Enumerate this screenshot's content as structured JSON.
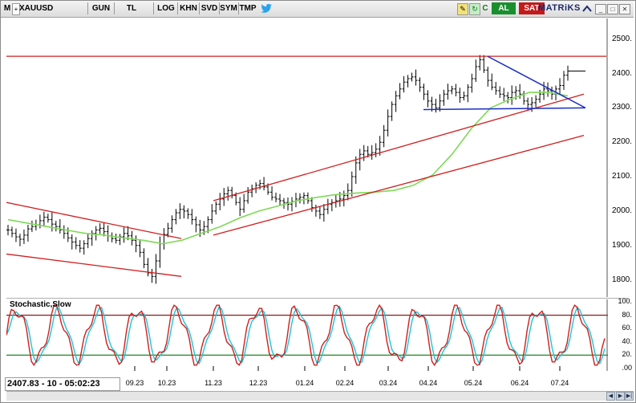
{
  "toolbar": {
    "menu_label": "M",
    "symbol": "XAUUSD",
    "buttons": [
      "GUN",
      "TL",
      "LOG",
      "KHN",
      "SVD",
      "SYM",
      "TMP"
    ],
    "status_letter": "C",
    "buy_label": "AL",
    "sell_label": "SAT",
    "brand": "MATRiKS",
    "colors": {
      "buy": "#1a8f2e",
      "sell": "#c41a1a",
      "brand": "#1b2a6b"
    },
    "icons": [
      "twitter-icon",
      "edit-icon",
      "refresh-icon"
    ]
  },
  "status_text": "2407.83 - 10 - 05:02:23",
  "stoch_title": "Stochastic,Slow",
  "x_axis_labels": [
    "09.23",
    "10.23",
    "11.23",
    "12.23",
    "01.24",
    "02.24",
    "03.24",
    "04.24",
    "05.24",
    "06.24",
    "07.24"
  ],
  "chart_data": [
    {
      "type": "candlestick",
      "title": "XAUUSD",
      "ylim": [
        1750,
        2560
      ],
      "y_ticks": [
        1800,
        1900,
        2000,
        2100,
        2200,
        2300,
        2400,
        2500
      ],
      "y_tick_labels": [
        "1800.",
        "1900.",
        "2000.",
        "2100.",
        "2200.",
        "2300.",
        "2400.",
        "2500."
      ],
      "x_ticks": [
        "09.23",
        "10.23",
        "11.23",
        "12.23",
        "01.24",
        "02.24",
        "03.24",
        "04.24",
        "05.24",
        "06.24",
        "07.24"
      ],
      "price_series": [
        1945,
        1935,
        1925,
        1918,
        1930,
        1948,
        1955,
        1960,
        1972,
        1982,
        1975,
        1962,
        1955,
        1945,
        1935,
        1922,
        1910,
        1900,
        1892,
        1905,
        1920,
        1935,
        1945,
        1950,
        1940,
        1928,
        1920,
        1915,
        1925,
        1935,
        1928,
        1915,
        1900,
        1880,
        1845,
        1820,
        1810,
        1855,
        1905,
        1932,
        1950,
        1975,
        1995,
        2005,
        2000,
        1990,
        1975,
        1960,
        1945,
        1955,
        1975,
        2000,
        2020,
        2035,
        2050,
        2060,
        2045,
        2025,
        2005,
        2030,
        2055,
        2065,
        2075,
        2080,
        2070,
        2055,
        2040,
        2035,
        2030,
        2025,
        2020,
        2028,
        2035,
        2040,
        2045,
        2030,
        2010,
        2000,
        1990,
        2005,
        2020,
        2025,
        2030,
        2035,
        2045,
        2060,
        2100,
        2140,
        2165,
        2175,
        2165,
        2170,
        2180,
        2200,
        2235,
        2275,
        2310,
        2335,
        2355,
        2375,
        2385,
        2390,
        2380,
        2360,
        2340,
        2320,
        2310,
        2300,
        2320,
        2340,
        2350,
        2355,
        2345,
        2330,
        2335,
        2360,
        2385,
        2420,
        2440,
        2410,
        2380,
        2360,
        2350,
        2340,
        2335,
        2330,
        2345,
        2350,
        2340,
        2320,
        2310,
        2315,
        2325,
        2340,
        2355,
        2350,
        2340,
        2355,
        2365,
        2395,
        2407
      ],
      "moving_average": [
        1975,
        1965,
        1955,
        1945,
        1935,
        1930,
        1922,
        1915,
        1905,
        1915,
        1935,
        1955,
        1980,
        2000,
        2015,
        2030,
        2040,
        2048,
        2052,
        2055,
        2060,
        2075,
        2105,
        2165,
        2240,
        2300,
        2325,
        2345,
        2345,
        2335
      ],
      "channels": [
        {
          "name": "downtrend-upper",
          "from": [
            "08.23",
            2025
          ],
          "to": [
            "10.23",
            1920
          ]
        },
        {
          "name": "downtrend-lower",
          "from": [
            "08.23",
            1875
          ],
          "to": [
            "10.23",
            1810
          ]
        },
        {
          "name": "uptrend-upper",
          "from": [
            "11.23",
            2030
          ],
          "to": [
            "07.24",
            2340
          ]
        },
        {
          "name": "uptrend-lower",
          "from": [
            "11.23",
            1930
          ],
          "to": [
            "07.24",
            2220
          ]
        },
        {
          "name": "resistance",
          "from": [
            "08.23",
            2450
          ],
          "to": [
            "07.24",
            2450
          ]
        }
      ],
      "triangle": [
        {
          "from": [
            "05.24",
            2450
          ],
          "to": [
            "07.24",
            2300
          ]
        },
        {
          "from": [
            "04.24",
            2295
          ],
          "to": [
            "07.24",
            2300
          ]
        }
      ]
    },
    {
      "type": "line",
      "title": "Stochastic,Slow",
      "ylim": [
        0,
        100
      ],
      "y_ticks": [
        0,
        20,
        40,
        60,
        80,
        100
      ],
      "y_tick_labels": [
        ".00",
        "20.",
        "40.",
        "60.",
        "80.",
        "100."
      ],
      "levels": [
        20,
        80
      ],
      "series": [
        {
          "name": "%K",
          "color": "#d11e1e"
        },
        {
          "name": "%D",
          "color": "#19c7d9"
        }
      ]
    }
  ]
}
